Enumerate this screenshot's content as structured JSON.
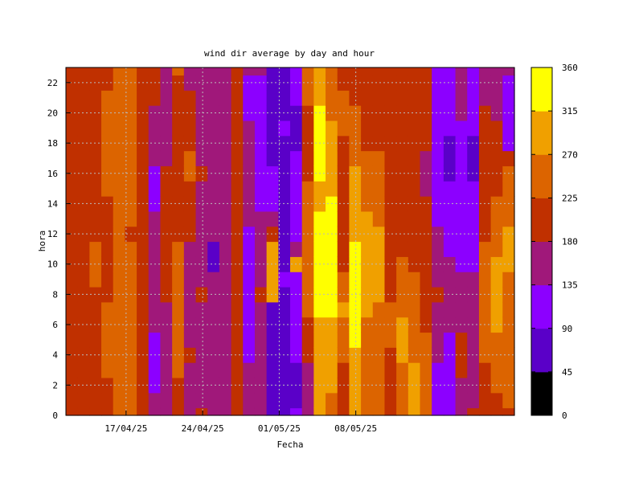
{
  "chart_data": {
    "type": "heatmap",
    "title": "wind dir average by day and hour",
    "xlabel": "Fecha",
    "ylabel": "hora",
    "x_ticks": [
      "17/04/25",
      "24/04/25",
      "01/05/25",
      "08/05/25"
    ],
    "y_ticks": [
      "0",
      "2",
      "4",
      "6",
      "8",
      "10",
      "12",
      "14",
      "16",
      "18",
      "20",
      "22"
    ],
    "ylim": [
      0,
      23
    ],
    "grid": true,
    "colorbar": {
      "min": 0,
      "max": 360,
      "ticks": [
        "0",
        "45",
        "90",
        "135",
        "180",
        "225",
        "270",
        "315",
        "360"
      ],
      "colors": [
        "#000000",
        "#5a00c8",
        "#8c00ff",
        "#a0187a",
        "#c03000",
        "#dc6400",
        "#f0a000",
        "#ffff00"
      ]
    },
    "columns": [
      [
        200,
        205,
        195,
        190,
        185,
        200,
        210,
        215,
        200,
        195,
        190,
        200,
        210,
        205,
        200,
        195,
        190,
        200,
        205,
        210,
        200,
        195,
        190,
        185
      ],
      [
        205,
        200,
        210,
        215,
        220,
        210,
        200,
        205,
        210,
        215,
        220,
        210,
        200,
        195,
        205,
        210,
        215,
        220,
        210,
        200,
        205,
        210,
        215,
        205
      ],
      [
        200,
        195,
        190,
        185,
        180,
        190,
        200,
        205,
        215,
        230,
        235,
        225,
        215,
        205,
        200,
        195,
        190,
        185,
        180,
        190,
        200,
        210,
        205,
        200
      ],
      [
        210,
        215,
        220,
        225,
        230,
        235,
        230,
        225,
        220,
        215,
        210,
        205,
        200,
        210,
        220,
        225,
        230,
        235,
        240,
        235,
        230,
        225,
        220,
        215
      ],
      [
        240,
        245,
        250,
        245,
        240,
        235,
        240,
        245,
        250,
        245,
        240,
        235,
        230,
        235,
        240,
        245,
        250,
        245,
        240,
        235,
        240,
        245,
        250,
        245
      ],
      [
        230,
        235,
        240,
        245,
        250,
        255,
        250,
        245,
        240,
        235,
        230,
        225,
        220,
        225,
        230,
        235,
        240,
        245,
        250,
        245,
        240,
        235,
        230,
        225
      ],
      [
        200,
        195,
        205,
        210,
        200,
        195,
        190,
        200,
        210,
        205,
        200,
        195,
        190,
        185,
        180,
        190,
        200,
        205,
        210,
        200,
        195,
        190,
        200,
        205
      ],
      [
        150,
        140,
        130,
        125,
        120,
        130,
        140,
        150,
        160,
        165,
        170,
        160,
        150,
        140,
        130,
        125,
        130,
        140,
        150,
        160,
        170,
        180,
        190,
        200
      ],
      [
        170,
        160,
        150,
        145,
        140,
        150,
        160,
        170,
        180,
        190,
        200,
        210,
        220,
        210,
        200,
        190,
        180,
        170,
        160,
        150,
        145,
        140,
        150,
        160
      ],
      [
        210,
        215,
        220,
        225,
        230,
        240,
        250,
        245,
        240,
        235,
        230,
        225,
        220,
        215,
        210,
        205,
        200,
        195,
        190,
        200,
        210,
        215,
        220,
        225
      ],
      [
        160,
        165,
        170,
        175,
        180,
        170,
        160,
        150,
        140,
        150,
        160,
        170,
        180,
        190,
        200,
        205,
        250,
        230,
        210,
        200,
        190,
        180,
        170,
        160
      ],
      [
        180,
        175,
        170,
        165,
        160,
        165,
        170,
        175,
        180,
        175,
        170,
        165,
        160,
        165,
        170,
        175,
        180,
        175,
        170,
        165,
        160,
        165,
        170,
        175
      ],
      [
        150,
        155,
        160,
        165,
        170,
        175,
        165,
        155,
        145,
        140,
        60,
        70,
        150,
        160,
        170,
        165,
        160,
        155,
        150,
        155,
        160,
        165,
        170,
        175
      ],
      [
        160,
        165,
        170,
        175,
        170,
        165,
        160,
        165,
        170,
        165,
        160,
        155,
        150,
        155,
        160,
        165,
        170,
        175,
        170,
        165,
        160,
        165,
        170,
        175
      ],
      [
        200,
        210,
        220,
        215,
        205,
        200,
        190,
        185,
        180,
        185,
        190,
        200,
        210,
        215,
        220,
        210,
        200,
        190,
        185,
        180,
        185,
        190,
        200,
        210
      ],
      [
        150,
        145,
        140,
        135,
        130,
        120,
        110,
        100,
        95,
        100,
        110,
        120,
        130,
        140,
        150,
        160,
        165,
        160,
        150,
        140,
        130,
        120,
        130,
        140
      ],
      [
        170,
        165,
        160,
        155,
        150,
        160,
        170,
        175,
        180,
        175,
        170,
        160,
        150,
        140,
        130,
        120,
        115,
        110,
        105,
        100,
        110,
        120,
        130,
        140
      ],
      [
        80,
        75,
        70,
        65,
        60,
        65,
        70,
        80,
        290,
        300,
        295,
        280,
        200,
        140,
        120,
        100,
        90,
        85,
        80,
        75,
        70,
        75,
        80,
        85
      ],
      [
        85,
        80,
        75,
        70,
        65,
        70,
        75,
        80,
        85,
        90,
        85,
        80,
        75,
        70,
        65,
        70,
        75,
        80,
        85,
        90,
        85,
        80,
        75,
        70
      ],
      [
        90,
        85,
        80,
        85,
        90,
        95,
        100,
        110,
        120,
        130,
        300,
        140,
        130,
        120,
        110,
        100,
        95,
        90,
        85,
        80,
        85,
        90,
        95,
        100
      ],
      [
        140,
        150,
        160,
        170,
        180,
        200,
        215,
        225,
        235,
        245,
        250,
        245,
        240,
        235,
        230,
        225,
        220,
        215,
        210,
        215,
        220,
        225,
        230,
        235
      ],
      [
        270,
        275,
        280,
        285,
        290,
        300,
        310,
        320,
        330,
        340,
        345,
        340,
        330,
        320,
        310,
        300,
        320,
        340,
        350,
        340,
        320,
        300,
        290,
        280
      ],
      [
        260,
        265,
        270,
        280,
        290,
        300,
        310,
        320,
        340,
        350,
        355,
        350,
        340,
        330,
        320,
        310,
        300,
        290,
        280,
        270,
        265,
        260,
        255,
        250
      ],
      [
        200,
        205,
        210,
        220,
        230,
        240,
        260,
        280,
        250,
        230,
        220,
        210,
        200,
        195,
        190,
        200,
        210,
        215,
        220,
        225,
        230,
        225,
        220,
        215
      ],
      [
        280,
        285,
        290,
        300,
        310,
        320,
        330,
        340,
        345,
        340,
        330,
        320,
        310,
        300,
        290,
        280,
        270,
        260,
        250,
        240,
        230,
        220,
        210,
        200
      ],
      [
        260,
        255,
        250,
        245,
        240,
        250,
        260,
        270,
        280,
        290,
        300,
        290,
        280,
        270,
        260,
        250,
        240,
        230,
        220,
        210,
        205,
        200,
        195,
        190
      ],
      [
        230,
        235,
        240,
        245,
        250,
        255,
        260,
        265,
        270,
        275,
        280,
        285,
        275,
        265,
        255,
        245,
        235,
        225,
        215,
        210,
        205,
        200,
        205,
        210
      ],
      [
        200,
        205,
        210,
        215,
        220,
        225,
        230,
        225,
        220,
        215,
        210,
        205,
        200,
        195,
        190,
        185,
        180,
        185,
        190,
        195,
        200,
        205,
        210,
        215
      ],
      [
        230,
        240,
        250,
        260,
        270,
        275,
        270,
        260,
        250,
        240,
        230,
        220,
        210,
        200,
        195,
        190,
        185,
        190,
        195,
        200,
        205,
        210,
        215,
        220
      ],
      [
        270,
        275,
        280,
        270,
        260,
        250,
        240,
        235,
        230,
        225,
        220,
        215,
        210,
        205,
        200,
        195,
        190,
        185,
        180,
        185,
        190,
        195,
        200,
        205
      ],
      [
        250,
        255,
        260,
        250,
        240,
        230,
        220,
        215,
        210,
        205,
        200,
        195,
        190,
        185,
        180,
        175,
        170,
        175,
        180,
        185,
        190,
        195,
        200,
        205
      ],
      [
        100,
        110,
        120,
        130,
        140,
        150,
        160,
        170,
        180,
        170,
        160,
        150,
        140,
        130,
        120,
        110,
        100,
        95,
        90,
        95,
        100,
        110,
        120,
        130
      ],
      [
        90,
        95,
        100,
        110,
        120,
        130,
        140,
        150,
        160,
        150,
        140,
        130,
        120,
        110,
        100,
        90,
        85,
        80,
        85,
        90,
        95,
        100,
        110,
        120
      ],
      [
        150,
        160,
        170,
        180,
        185,
        180,
        170,
        160,
        150,
        140,
        130,
        120,
        110,
        100,
        95,
        90,
        100,
        110,
        120,
        130,
        140,
        150,
        160,
        170
      ],
      [
        180,
        175,
        170,
        165,
        160,
        155,
        150,
        145,
        140,
        135,
        130,
        125,
        120,
        115,
        110,
        100,
        80,
        75,
        80,
        90,
        100,
        110,
        120,
        130
      ],
      [
        200,
        205,
        210,
        220,
        230,
        240,
        250,
        245,
        240,
        235,
        230,
        225,
        220,
        215,
        210,
        205,
        200,
        195,
        190,
        185,
        180,
        175,
        170,
        165
      ],
      [
        210,
        220,
        230,
        240,
        250,
        260,
        270,
        280,
        285,
        280,
        270,
        260,
        250,
        240,
        230,
        220,
        210,
        200,
        190,
        180,
        170,
        160,
        150,
        140
      ],
      [
        220,
        225,
        230,
        235,
        240,
        245,
        250,
        255,
        260,
        265,
        270,
        275,
        270,
        260,
        250,
        240,
        230,
        220,
        120,
        110,
        100,
        95,
        100,
        150
      ]
    ]
  }
}
